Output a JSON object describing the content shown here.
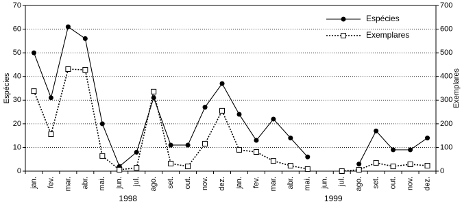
{
  "chart_data": {
    "type": "line",
    "categories": [
      "jan.",
      "fev.",
      "mar.",
      "abr.",
      "mai.",
      "jun.",
      "jul.",
      "ago.",
      "set.",
      "out.",
      "nov.",
      "dez.",
      "jan.",
      "fev.",
      "mar.",
      "abr.",
      "mai.",
      "jun.",
      "jul.",
      "ago.",
      "set.",
      "out.",
      "nov.",
      "dez."
    ],
    "years": [
      "1998",
      "1999"
    ],
    "y_label": "Espécies",
    "y2_label": "Exemplares",
    "ylim": [
      0,
      70
    ],
    "yticks": [
      0,
      10,
      20,
      30,
      40,
      50,
      60,
      70
    ],
    "y2lim": [
      0,
      700
    ],
    "y2ticks": [
      0,
      100,
      200,
      300,
      400,
      500,
      600,
      700
    ],
    "grid": true,
    "legend_position": "top-right",
    "series": [
      {
        "name": "Espécies",
        "color": "#000000",
        "marker": "circle",
        "line_style": "solid",
        "values": [
          50,
          31,
          61,
          56,
          20,
          2,
          8,
          31,
          11,
          11,
          27,
          37,
          24,
          13,
          22,
          14,
          6,
          null,
          null,
          3,
          17,
          9,
          9,
          14
        ]
      },
      {
        "name": "Exemplares",
        "color": "#000000",
        "marker": "square",
        "line_style": "dotted",
        "axis": "y2",
        "values": [
          338,
          156,
          431,
          428,
          64,
          6,
          14,
          336,
          32,
          20,
          116,
          255,
          90,
          81,
          43,
          23,
          9,
          null,
          0,
          6,
          35,
          20,
          29,
          23
        ]
      }
    ]
  }
}
